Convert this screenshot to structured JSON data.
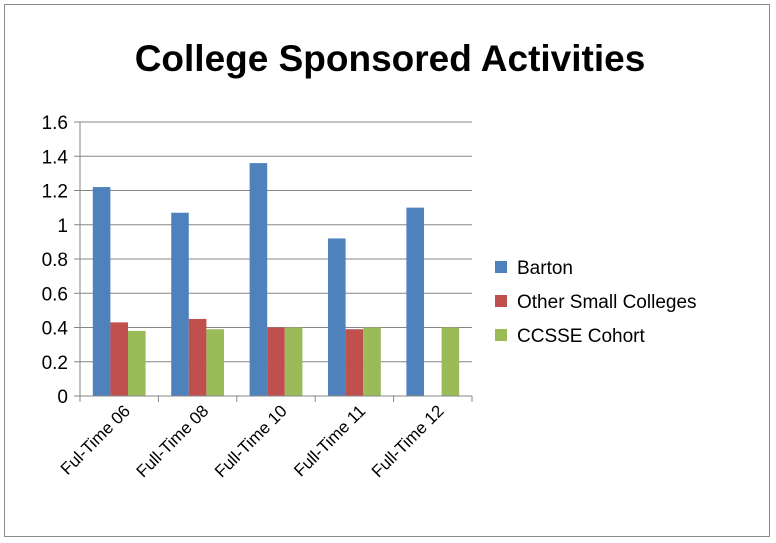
{
  "chart_data": {
    "type": "bar",
    "title": "College Sponsored Activities",
    "categories": [
      "Ful-Time 06",
      "Full-Time 08",
      "Full-Time 10",
      "Full-Time 11",
      "Full-Time 12"
    ],
    "series": [
      {
        "name": "Barton",
        "color": "#4F81BD",
        "values": [
          1.22,
          1.07,
          1.36,
          0.92,
          1.1
        ]
      },
      {
        "name": "Other Small Colleges",
        "color": "#C0504D",
        "values": [
          0.43,
          0.45,
          0.4,
          0.39,
          null
        ]
      },
      {
        "name": "CCSSE Cohort",
        "color": "#9BBB59",
        "values": [
          0.38,
          0.39,
          0.4,
          0.4,
          0.4
        ]
      }
    ],
    "yticks": [
      "0",
      "0.2",
      "0.4",
      "0.6",
      "0.8",
      "1",
      "1.2",
      "1.4",
      "1.6"
    ],
    "ylim": [
      0,
      1.6
    ],
    "grid": true,
    "legend_position": "right"
  }
}
